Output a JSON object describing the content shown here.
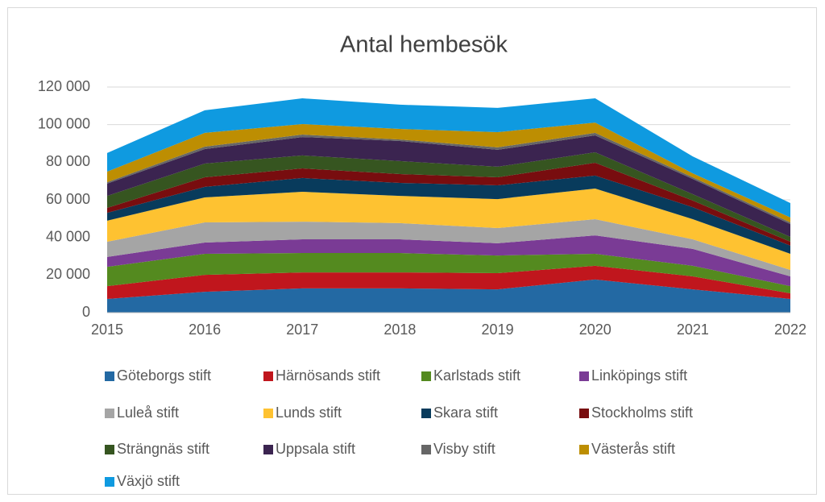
{
  "chart_data": {
    "type": "stacked_area",
    "title": "Antal  hembesök",
    "categories": [
      "2015",
      "2016",
      "2017",
      "2018",
      "2019",
      "2020",
      "2021",
      "2022"
    ],
    "ylim": [
      0,
      120000
    ],
    "yticks": [
      0,
      {
        "value": 20000,
        "label": "20 000"
      },
      {
        "value": 40000,
        "label": "40 000"
      },
      {
        "value": 60000,
        "label": "60 000"
      },
      {
        "value": 80000,
        "label": "80 000"
      },
      {
        "value": 100000,
        "label": "100 000"
      },
      {
        "value": 120000,
        "label": "120 000"
      }
    ],
    "grid": true,
    "legend": "bottom",
    "series": [
      {
        "name": "Göteborgs stift",
        "color": "#2369a3",
        "values": [
          7300,
          11100,
          12900,
          12900,
          12400,
          17600,
          12400,
          7300
        ]
      },
      {
        "name": "Härnösands stift",
        "color": "#c0161d",
        "values": [
          6800,
          9000,
          8500,
          8500,
          8600,
          7300,
          6900,
          3000
        ]
      },
      {
        "name": "Karlstads stift",
        "color": "#548a1f",
        "values": [
          10300,
          11200,
          10300,
          10300,
          9400,
          6400,
          5600,
          3800
        ]
      },
      {
        "name": "Linköpings stift",
        "color": "#7a3b95",
        "values": [
          5200,
          6000,
          7300,
          7300,
          6500,
          9800,
          9000,
          5200
        ]
      },
      {
        "name": "Luleå stift",
        "color": "#a5a5a5",
        "values": [
          8100,
          10700,
          9400,
          8600,
          8100,
          8600,
          5100,
          3400
        ]
      },
      {
        "name": "Lunds stift",
        "color": "#fec231",
        "values": [
          11200,
          13300,
          15900,
          14500,
          15400,
          16300,
          10700,
          8600
        ]
      },
      {
        "name": "Skara stift",
        "color": "#083b5c",
        "values": [
          4200,
          5600,
          7300,
          6900,
          7300,
          6900,
          6400,
          4300
        ]
      },
      {
        "name": "Stockholms stift",
        "color": "#780d0f",
        "values": [
          2600,
          5100,
          5100,
          4700,
          4300,
          6800,
          3500,
          2100
        ]
      },
      {
        "name": "Strängnäs stift",
        "color": "#365520",
        "values": [
          6400,
          7300,
          6900,
          6900,
          5600,
          5600,
          3400,
          2600
        ]
      },
      {
        "name": "Uppsala stift",
        "color": "#3b2450",
        "values": [
          6500,
          7700,
          9800,
          10700,
          9000,
          9000,
          8100,
          6800
        ]
      },
      {
        "name": "Visby stift",
        "color": "#666666",
        "values": [
          800,
          1300,
          1300,
          800,
          1300,
          1300,
          900,
          900
        ]
      },
      {
        "name": "Västerås stift",
        "color": "#bd8e02",
        "values": [
          5600,
          7300,
          5600,
          5600,
          8100,
          5500,
          2100,
          2600
        ]
      },
      {
        "name": "Växjö stift",
        "color": "#0f9ae0",
        "values": [
          9900,
          12000,
          13700,
          12900,
          12900,
          12900,
          9000,
          7700
        ]
      }
    ]
  }
}
